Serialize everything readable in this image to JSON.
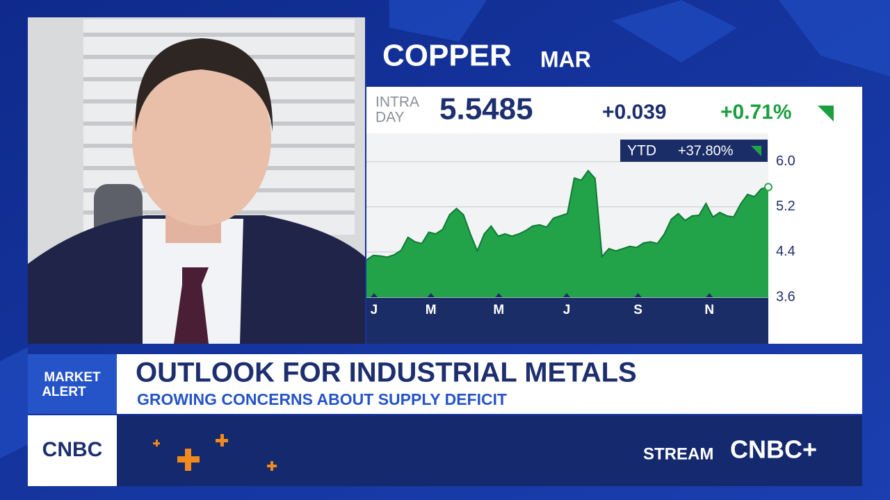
{
  "quote": {
    "commodity": "COPPER",
    "contract": "MAR",
    "session_line1": "INTRA",
    "session_line2": "DAY",
    "last": "5.5485",
    "change": "+0.039",
    "change_pct": "+0.71%",
    "ytd_label": "YTD",
    "ytd_value": "+37.80%"
  },
  "chart_data": {
    "type": "area",
    "color": "#22a34a",
    "line_color": "#0e7a33",
    "values": [
      4.26,
      4.34,
      4.33,
      4.31,
      4.35,
      4.43,
      4.66,
      4.58,
      4.55,
      4.75,
      4.72,
      4.8,
      5.06,
      5.17,
      5.06,
      4.72,
      4.42,
      4.72,
      4.86,
      4.68,
      4.72,
      4.68,
      4.72,
      4.78,
      4.86,
      4.88,
      4.84,
      5.0,
      5.04,
      5.08,
      5.71,
      5.67,
      5.84,
      5.7,
      4.32,
      4.46,
      4.42,
      4.46,
      4.5,
      4.48,
      4.56,
      4.58,
      4.55,
      4.72,
      4.98,
      5.08,
      4.96,
      5.04,
      5.05,
      5.26,
      5.02,
      5.1,
      5.04,
      5.02,
      5.25,
      5.42,
      5.38,
      5.52,
      5.5485
    ],
    "xlim": [
      0,
      58
    ],
    "xticks": [
      {
        "value": 1.1,
        "label": "J"
      },
      {
        "value": 9.3,
        "label": "M"
      },
      {
        "value": 19.1,
        "label": "M"
      },
      {
        "value": 28.9,
        "label": "J"
      },
      {
        "value": 39.2,
        "label": "S"
      },
      {
        "value": 49.5,
        "label": "N"
      }
    ],
    "ylim": [
      3.6,
      6.5
    ],
    "yticks": [
      {
        "value": 6,
        "label": "6.0"
      },
      5.2,
      4.4,
      3.6
    ],
    "grid": true
  },
  "lower_third": {
    "badge_line1": "MARKET",
    "badge_line2": "ALERT",
    "headline": "OUTLOOK FOR INDUSTRIAL METALS",
    "subheadline": "GROWING CONCERNS ABOUT SUPPLY DEFICIT"
  },
  "footer": {
    "logo": "CNBC",
    "stream": "STREAM",
    "stream_brand": "CNBC+"
  }
}
